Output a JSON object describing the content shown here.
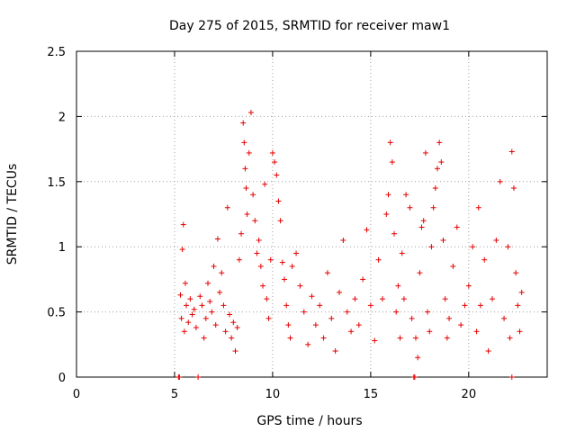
{
  "chart_data": {
    "type": "scatter",
    "title": "Day 275 of 2015, SRMTID for receiver maw1",
    "xlabel": "GPS time / hours",
    "ylabel": "SRMTID / TECUs",
    "xlim": [
      0,
      24
    ],
    "ylim": [
      0,
      2.5
    ],
    "xticks": [
      0,
      5,
      10,
      15,
      20
    ],
    "xtick_labels": [
      "0",
      "5",
      "10",
      "15",
      "20"
    ],
    "yticks": [
      0,
      0.5,
      1,
      1.5,
      2,
      2.5
    ],
    "ytick_labels": [
      "0",
      "0.5",
      "1",
      "1.5",
      "2",
      "2.5"
    ],
    "grid": true,
    "marker": "+",
    "series": [
      {
        "name": "SRMTID",
        "color": "#e60000",
        "points": [
          [
            5.2,
            0.0
          ],
          [
            5.25,
            0.0
          ],
          [
            6.2,
            0.0
          ],
          [
            17.2,
            0.0
          ],
          [
            17.25,
            0.0
          ],
          [
            22.2,
            0.0
          ],
          [
            5.3,
            0.63
          ],
          [
            5.35,
            0.45
          ],
          [
            5.4,
            0.98
          ],
          [
            5.45,
            1.17
          ],
          [
            5.5,
            0.35
          ],
          [
            5.55,
            0.72
          ],
          [
            5.6,
            0.55
          ],
          [
            5.7,
            0.42
          ],
          [
            5.8,
            0.6
          ],
          [
            5.9,
            0.48
          ],
          [
            6.0,
            0.52
          ],
          [
            6.1,
            0.38
          ],
          [
            6.3,
            0.62
          ],
          [
            6.4,
            0.55
          ],
          [
            6.5,
            0.3
          ],
          [
            6.6,
            0.45
          ],
          [
            6.7,
            0.72
          ],
          [
            6.8,
            0.58
          ],
          [
            6.9,
            0.5
          ],
          [
            7.0,
            0.85
          ],
          [
            7.1,
            0.4
          ],
          [
            7.2,
            1.06
          ],
          [
            7.3,
            0.65
          ],
          [
            7.4,
            0.8
          ],
          [
            7.5,
            0.55
          ],
          [
            7.6,
            0.35
          ],
          [
            7.7,
            1.3
          ],
          [
            7.8,
            0.48
          ],
          [
            7.9,
            0.3
          ],
          [
            8.0,
            0.42
          ],
          [
            8.1,
            0.2
          ],
          [
            8.2,
            0.38
          ],
          [
            8.3,
            0.9
          ],
          [
            8.4,
            1.1
          ],
          [
            8.5,
            1.95
          ],
          [
            8.55,
            1.8
          ],
          [
            8.6,
            1.6
          ],
          [
            8.65,
            1.45
          ],
          [
            8.7,
            1.25
          ],
          [
            8.8,
            1.72
          ],
          [
            8.9,
            2.03
          ],
          [
            9.0,
            1.4
          ],
          [
            9.1,
            1.2
          ],
          [
            9.2,
            0.95
          ],
          [
            9.3,
            1.05
          ],
          [
            9.4,
            0.85
          ],
          [
            9.5,
            0.7
          ],
          [
            9.6,
            1.48
          ],
          [
            9.7,
            0.6
          ],
          [
            9.8,
            0.45
          ],
          [
            9.9,
            0.9
          ],
          [
            10.0,
            1.72
          ],
          [
            10.1,
            1.65
          ],
          [
            10.2,
            1.55
          ],
          [
            10.3,
            1.35
          ],
          [
            10.4,
            1.2
          ],
          [
            10.5,
            0.88
          ],
          [
            10.6,
            0.75
          ],
          [
            10.7,
            0.55
          ],
          [
            10.8,
            0.4
          ],
          [
            10.9,
            0.3
          ],
          [
            11.0,
            0.85
          ],
          [
            11.2,
            0.95
          ],
          [
            11.4,
            0.7
          ],
          [
            11.6,
            0.5
          ],
          [
            11.8,
            0.25
          ],
          [
            12.0,
            0.62
          ],
          [
            12.2,
            0.4
          ],
          [
            12.4,
            0.55
          ],
          [
            12.6,
            0.3
          ],
          [
            12.8,
            0.8
          ],
          [
            13.0,
            0.45
          ],
          [
            13.2,
            0.2
          ],
          [
            13.4,
            0.65
          ],
          [
            13.6,
            1.05
          ],
          [
            13.8,
            0.5
          ],
          [
            14.0,
            0.35
          ],
          [
            14.2,
            0.6
          ],
          [
            14.4,
            0.4
          ],
          [
            14.6,
            0.75
          ],
          [
            14.8,
            1.13
          ],
          [
            15.0,
            0.55
          ],
          [
            15.2,
            0.28
          ],
          [
            15.4,
            0.9
          ],
          [
            15.6,
            0.6
          ],
          [
            15.8,
            1.25
          ],
          [
            15.9,
            1.4
          ],
          [
            16.0,
            1.8
          ],
          [
            16.1,
            1.65
          ],
          [
            16.2,
            1.1
          ],
          [
            16.3,
            0.5
          ],
          [
            16.4,
            0.7
          ],
          [
            16.5,
            0.3
          ],
          [
            16.6,
            0.95
          ],
          [
            16.7,
            0.6
          ],
          [
            16.8,
            1.4
          ],
          [
            17.0,
            1.3
          ],
          [
            17.1,
            0.45
          ],
          [
            17.3,
            0.3
          ],
          [
            17.4,
            0.15
          ],
          [
            17.5,
            0.8
          ],
          [
            17.6,
            1.15
          ],
          [
            17.7,
            1.2
          ],
          [
            17.8,
            1.72
          ],
          [
            17.9,
            0.5
          ],
          [
            18.0,
            0.35
          ],
          [
            18.1,
            1.0
          ],
          [
            18.2,
            1.3
          ],
          [
            18.3,
            1.45
          ],
          [
            18.4,
            1.6
          ],
          [
            18.5,
            1.8
          ],
          [
            18.6,
            1.65
          ],
          [
            18.7,
            1.05
          ],
          [
            18.8,
            0.6
          ],
          [
            18.9,
            0.3
          ],
          [
            19.0,
            0.45
          ],
          [
            19.2,
            0.85
          ],
          [
            19.4,
            1.15
          ],
          [
            19.6,
            0.4
          ],
          [
            19.8,
            0.55
          ],
          [
            20.0,
            0.7
          ],
          [
            20.2,
            1.0
          ],
          [
            20.4,
            0.35
          ],
          [
            20.5,
            1.3
          ],
          [
            20.6,
            0.55
          ],
          [
            20.8,
            0.9
          ],
          [
            21.0,
            0.2
          ],
          [
            21.2,
            0.6
          ],
          [
            21.4,
            1.05
          ],
          [
            21.6,
            1.5
          ],
          [
            21.8,
            0.45
          ],
          [
            22.0,
            1.0
          ],
          [
            22.1,
            0.3
          ],
          [
            22.2,
            1.73
          ],
          [
            22.3,
            1.45
          ],
          [
            22.4,
            0.8
          ],
          [
            22.5,
            0.55
          ],
          [
            22.6,
            0.35
          ],
          [
            22.7,
            0.65
          ]
        ]
      }
    ]
  }
}
